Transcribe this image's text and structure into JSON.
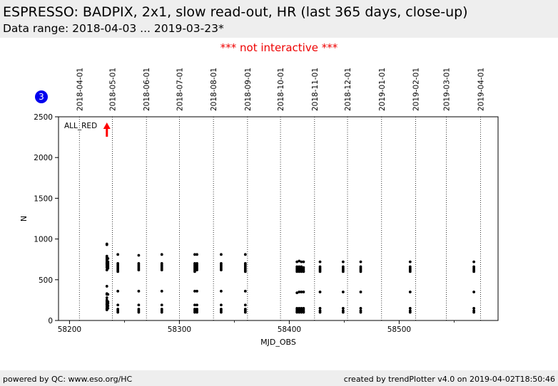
{
  "header": {
    "title": "ESPRESSO: BADPIX, 2x1, slow read-out, HR (last 365 days, close-up)",
    "subtitle": "Data range: 2018-04-03 ... 2019-03-23*"
  },
  "notice": "*** not interactive ***",
  "badge": {
    "label": "3",
    "color": "#0000ee"
  },
  "footer": {
    "left": "powered by QC: www.eso.org/HC",
    "right": "created by trendPlotter v4.0 on 2019-04-02T18:50:46"
  },
  "chart_data": {
    "type": "scatter",
    "xlabel": "MJD_OBS",
    "ylabel": "N",
    "xlim": [
      58190,
      58590
    ],
    "ylim": [
      0,
      2500
    ],
    "x_ticks": [
      58200,
      58300,
      58400,
      58500
    ],
    "y_ticks": [
      0,
      500,
      1000,
      1500,
      2000,
      2500
    ],
    "grid": false,
    "point_color": "#000000",
    "date_markers": [
      {
        "label": "2018-04-01",
        "mjd": 58209
      },
      {
        "label": "2018-05-01",
        "mjd": 58239
      },
      {
        "label": "2018-06-01",
        "mjd": 58270
      },
      {
        "label": "2018-07-01",
        "mjd": 58300
      },
      {
        "label": "2018-08-01",
        "mjd": 58331
      },
      {
        "label": "2018-09-01",
        "mjd": 58362
      },
      {
        "label": "2018-10-01",
        "mjd": 58392
      },
      {
        "label": "2018-11-01",
        "mjd": 58423
      },
      {
        "label": "2018-12-01",
        "mjd": 58453
      },
      {
        "label": "2019-01-01",
        "mjd": 58484
      },
      {
        "label": "2019-02-01",
        "mjd": 58515
      },
      {
        "label": "2019-03-01",
        "mjd": 58543
      },
      {
        "label": "2019-04-01",
        "mjd": 58574
      }
    ],
    "annotation": {
      "text": "ALL_RED",
      "x": 58234,
      "y": 2400,
      "color": "#ff0000"
    },
    "groups": [
      {
        "x": 58234,
        "values": [
          940,
          930,
          790,
          770,
          750,
          730,
          710,
          700,
          690,
          670,
          650,
          620,
          420,
          330,
          320,
          280,
          250,
          230,
          210,
          200,
          190,
          170,
          150,
          140,
          130
        ]
      },
      {
        "x": 58235,
        "values": [
          760,
          720,
          700,
          680,
          660,
          640,
          320,
          230,
          210,
          180,
          150
        ]
      },
      {
        "x": 58244,
        "values": [
          810,
          700,
          680,
          660,
          640,
          620,
          600,
          360,
          190,
          140,
          120,
          100
        ]
      },
      {
        "x": 58263,
        "values": [
          800,
          700,
          680,
          660,
          640,
          620,
          360,
          190,
          140,
          120,
          100
        ]
      },
      {
        "x": 58284,
        "values": [
          810,
          700,
          680,
          660,
          640,
          620,
          360,
          190,
          140,
          120,
          100
        ]
      },
      {
        "x": 58314,
        "values": [
          810,
          700,
          680,
          660,
          640,
          620,
          600,
          360,
          190,
          140,
          120,
          100
        ]
      },
      {
        "x": 58316,
        "values": [
          810,
          700,
          680,
          660,
          640,
          620,
          360,
          190,
          140,
          120,
          100
        ]
      },
      {
        "x": 58338,
        "values": [
          810,
          700,
          680,
          660,
          640,
          620,
          360,
          190,
          140,
          120,
          100
        ]
      },
      {
        "x": 58360,
        "values": [
          810,
          700,
          680,
          660,
          640,
          620,
          600,
          360,
          190,
          140,
          120,
          100
        ]
      },
      {
        "x": 58407,
        "values": [
          720,
          660,
          640,
          620,
          600,
          340,
          150,
          130,
          110,
          100
        ]
      },
      {
        "x": 58409,
        "values": [
          730,
          660,
          640,
          620,
          600,
          350,
          150,
          130,
          110,
          100
        ]
      },
      {
        "x": 58411,
        "values": [
          720,
          660,
          640,
          620,
          600,
          350,
          150,
          130,
          110,
          100
        ]
      },
      {
        "x": 58413,
        "values": [
          720,
          650,
          630,
          610,
          600,
          350,
          150,
          130,
          110,
          100
        ]
      },
      {
        "x": 58428,
        "values": [
          720,
          660,
          640,
          620,
          600,
          350,
          150,
          120,
          100
        ]
      },
      {
        "x": 58449,
        "values": [
          720,
          660,
          640,
          620,
          600,
          350,
          150,
          120,
          100
        ]
      },
      {
        "x": 58465,
        "values": [
          720,
          660,
          640,
          620,
          600,
          350,
          150,
          120,
          100
        ]
      },
      {
        "x": 58510,
        "values": [
          720,
          660,
          640,
          620,
          600,
          350,
          150,
          120,
          100
        ]
      },
      {
        "x": 58568,
        "values": [
          720,
          660,
          640,
          620,
          600,
          350,
          150,
          120,
          100
        ]
      }
    ]
  }
}
